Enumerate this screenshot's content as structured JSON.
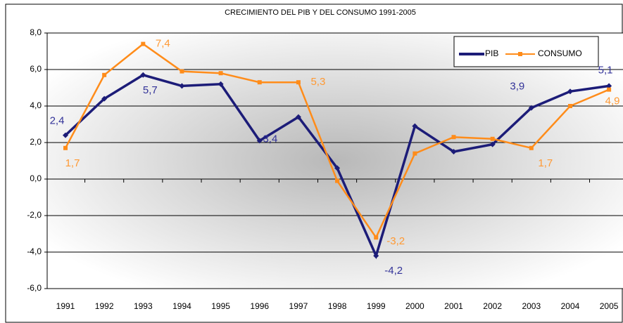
{
  "chart_data": {
    "type": "line",
    "title": "CRECIMIENTO DEL PIB Y DEL CONSUMO 1991-2005",
    "categories": [
      "1991",
      "1992",
      "1993",
      "1994",
      "1995",
      "1996",
      "1997",
      "1998",
      "1999",
      "2000",
      "2001",
      "2002",
      "2003",
      "2004",
      "2005"
    ],
    "series": [
      {
        "name": "PIB",
        "color": "#1c1c78",
        "values": [
          2.4,
          4.4,
          5.7,
          5.1,
          5.2,
          2.1,
          3.4,
          0.6,
          -4.2,
          2.9,
          1.5,
          1.9,
          3.9,
          4.8,
          5.1
        ],
        "value_labels": [
          "2,4",
          null,
          "5,7",
          null,
          null,
          null,
          "3,4",
          null,
          "-4,2",
          null,
          null,
          null,
          "3,9",
          null,
          "5,1"
        ],
        "label_color": "#333399"
      },
      {
        "name": "CONSUMO",
        "color": "#ff8c1a",
        "values": [
          1.7,
          5.7,
          7.4,
          5.9,
          5.8,
          5.3,
          5.3,
          -0.1,
          -3.2,
          1.4,
          2.3,
          2.2,
          1.7,
          4.0,
          4.9
        ],
        "value_labels": [
          "1,7",
          null,
          "7,4",
          null,
          null,
          null,
          "5,3",
          null,
          "-3,2",
          null,
          null,
          null,
          "1,7",
          null,
          "4,9"
        ],
        "label_color": "#ff9933"
      }
    ],
    "ylim": [
      -6,
      8
    ],
    "yticks": [
      {
        "value": -6,
        "label": "-6,0"
      },
      {
        "value": -4,
        "label": "-4,0"
      },
      {
        "value": -2,
        "label": "-2,0"
      },
      {
        "value": 0,
        "label": "0,0"
      },
      {
        "value": 2,
        "label": "2,0"
      },
      {
        "value": 4,
        "label": "4,0"
      },
      {
        "value": 6,
        "label": "6,0"
      },
      {
        "value": 8,
        "label": "8,0"
      }
    ],
    "grid": true,
    "legend": "top-right"
  }
}
